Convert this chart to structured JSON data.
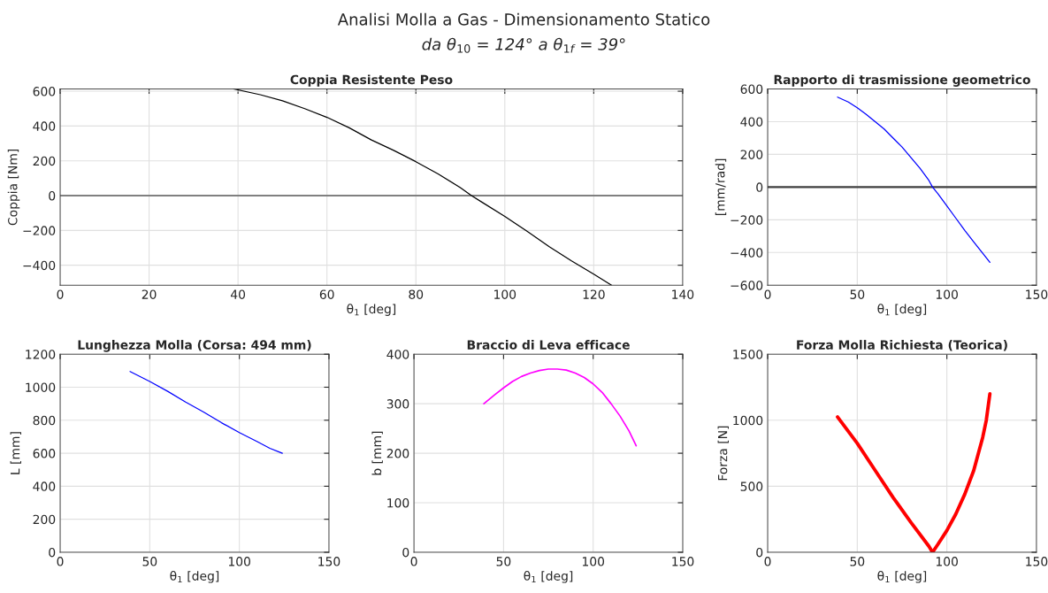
{
  "chart_data": [
    {
      "type": "line",
      "title": "Coppia Resistente Peso",
      "xlabel": "θ$_{1}$ [deg]",
      "ylabel": "Coppia [Nm]",
      "annotations": [
        "Analisi Molla a Gas - Dimensionamento Statico",
        "da θ$_{10}$ = 124° a θ$_{1f}$ = 39°"
      ],
      "xlim": [
        0,
        140
      ],
      "xticks": [
        0,
        20,
        40,
        60,
        80,
        100,
        120,
        140
      ],
      "ylim": [
        -515,
        613
      ],
      "yticks": [
        -400,
        -200,
        0,
        200,
        400,
        600
      ],
      "grid": true,
      "ref_lines": [
        {
          "axis": "y",
          "value": 0,
          "color": "#808080"
        }
      ],
      "series": [
        {
          "color": "#000000",
          "x": [
            39,
            45,
            50,
            55,
            60,
            65,
            70,
            75,
            80,
            85,
            90,
            92.5,
            95,
            100,
            105,
            110,
            115,
            120,
            124
          ],
          "values": [
            613,
            580,
            545,
            500,
            450,
            390,
            320,
            260,
            195,
            125,
            46,
            0,
            -40,
            -119,
            -205,
            -294,
            -375,
            -451,
            -515
          ]
        }
      ]
    },
    {
      "type": "line",
      "title": "Rapporto di trasmissione geometrico",
      "xlabel": "θ$_{1}$ [deg]",
      "ylabel": "[mm/rad]",
      "xlim": [
        0,
        150
      ],
      "xticks": [
        0,
        50,
        100,
        150
      ],
      "ylim": [
        -600,
        600
      ],
      "yticks": [
        -600,
        -400,
        -200,
        0,
        200,
        400,
        600
      ],
      "grid": true,
      "ref_lines": [
        {
          "axis": "y",
          "value": 0,
          "color": "#404040"
        }
      ],
      "series": [
        {
          "color": "#0000ff",
          "x": [
            39,
            45,
            50,
            55,
            60,
            65,
            70,
            75,
            80,
            85,
            90,
            92,
            95,
            100,
            105,
            110,
            115,
            120,
            124
          ],
          "values": [
            550,
            520,
            485,
            445,
            400,
            355,
            300,
            245,
            180,
            115,
            40,
            0,
            -40,
            -115,
            -190,
            -265,
            -335,
            -405,
            -460
          ]
        }
      ]
    },
    {
      "type": "line",
      "title": "Lunghezza Molla (Corsa: 494 mm)",
      "xlabel": "θ$_{1}$ [deg]",
      "ylabel": "L [mm]",
      "xlim": [
        0,
        150
      ],
      "xticks": [
        0,
        50,
        100,
        150
      ],
      "ylim": [
        0,
        1200
      ],
      "yticks": [
        0,
        200,
        400,
        600,
        800,
        1000,
        1200
      ],
      "grid": true,
      "series": [
        {
          "color": "#0000ff",
          "x": [
            39,
            50,
            60,
            70,
            80,
            90,
            100,
            110,
            117,
            124
          ],
          "values": [
            1095,
            1035,
            975,
            910,
            850,
            785,
            725,
            670,
            630,
            600
          ]
        }
      ]
    },
    {
      "type": "line",
      "title": "Braccio di Leva efficace",
      "xlabel": "θ$_{1}$ [deg]",
      "ylabel": "b [mm]",
      "xlim": [
        0,
        150
      ],
      "xticks": [
        0,
        50,
        100,
        150
      ],
      "ylim": [
        0,
        400
      ],
      "yticks": [
        0,
        100,
        200,
        300,
        400
      ],
      "grid": true,
      "series": [
        {
          "color": "#ff00ff",
          "x": [
            39,
            45,
            50,
            55,
            60,
            65,
            70,
            75,
            80,
            85,
            90,
            95,
            100,
            105,
            110,
            115,
            120,
            124
          ],
          "values": [
            300,
            318,
            332,
            345,
            355,
            362,
            367,
            370,
            370,
            368,
            362,
            353,
            340,
            323,
            300,
            275,
            245,
            215
          ]
        }
      ]
    },
    {
      "type": "line",
      "title": "Forza Molla Richiesta (Teorica)",
      "xlabel": "θ$_{1}$ [deg]",
      "ylabel": "Forza [N]",
      "xlim": [
        0,
        150
      ],
      "xticks": [
        0,
        50,
        100,
        150
      ],
      "ylim": [
        0,
        1500
      ],
      "yticks": [
        0,
        500,
        1000,
        1500
      ],
      "grid": true,
      "series": [
        {
          "color": "#ff0000",
          "x": [
            39,
            50,
            60,
            70,
            80,
            90,
            92,
            95,
            100,
            105,
            110,
            115,
            120,
            122,
            124
          ],
          "values": [
            1025,
            825,
            620,
            415,
            225,
            45,
            0,
            60,
            165,
            290,
            440,
            620,
            870,
            1000,
            1200
          ]
        }
      ]
    }
  ]
}
